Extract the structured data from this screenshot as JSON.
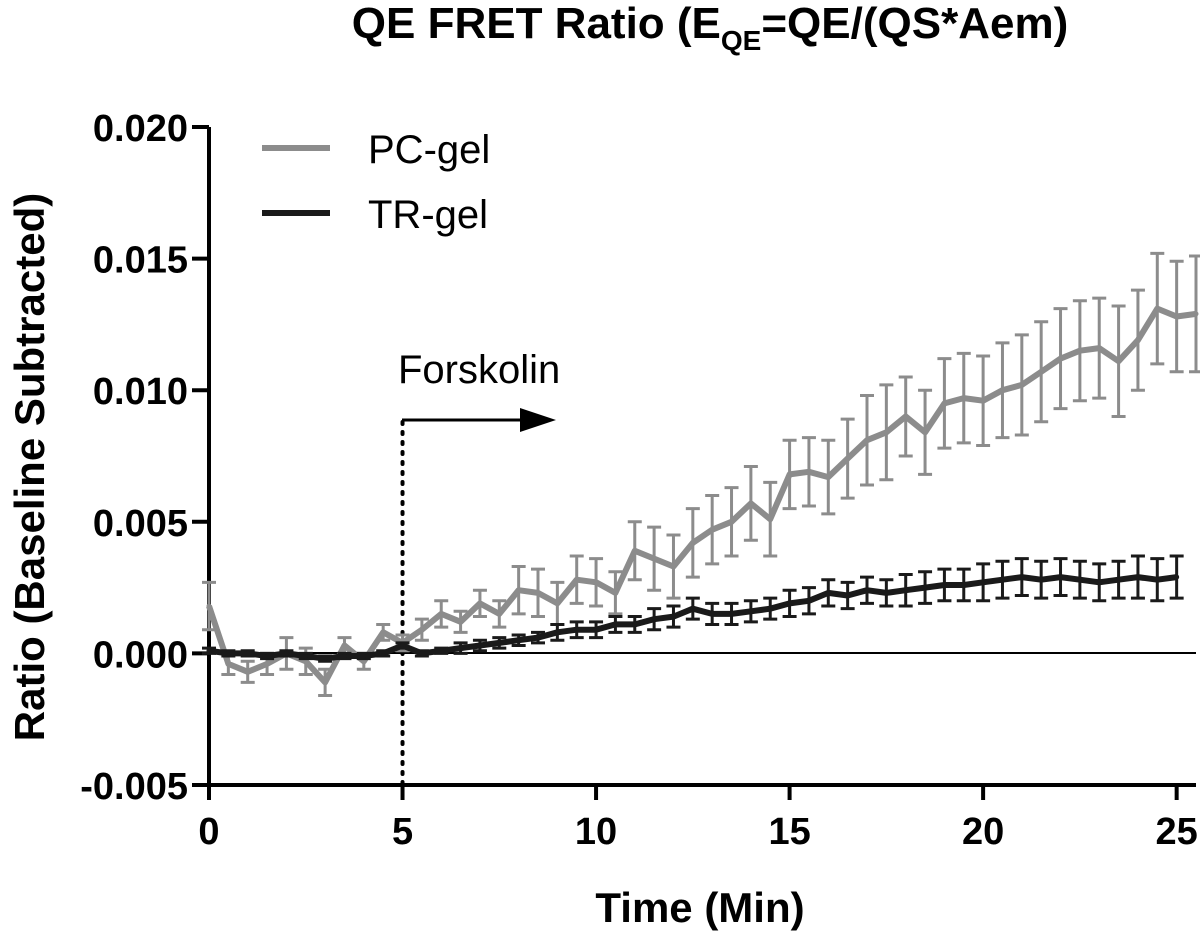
{
  "chart_data": {
    "type": "line",
    "title": {
      "main": "QE FRET Ratio (E",
      "subscript": "QE",
      "rest": "=QE/(QS*Aem)"
    },
    "xlabel": "Time (Min)",
    "ylabel": "Ratio (Baseline  Subtracted)",
    "xlim": [
      0,
      25.5
    ],
    "ylim": [
      -0.005,
      0.02
    ],
    "xticks": [
      0,
      5,
      10,
      15,
      20,
      25
    ],
    "xtick_labels": [
      "0",
      "5",
      "10",
      "15",
      "20",
      "25"
    ],
    "yticks": [
      -0.005,
      0,
      0.005,
      0.01,
      0.015,
      0.02
    ],
    "ytick_labels": [
      "-0.005",
      "0.000",
      "0.005",
      "0.010",
      "0.015",
      "0.020"
    ],
    "legend_position": "top-left",
    "colors": {
      "PC-gel": "#8c8c8c",
      "TR-gel": "#1a1a1a",
      "axis": "#000000"
    },
    "annotations": {
      "event_label": "Forskolin",
      "event_x": 5
    },
    "series": [
      {
        "name": "PC-gel",
        "x": [
          0,
          0.5,
          1,
          1.5,
          2,
          2.5,
          3,
          3.5,
          4,
          4.5,
          5,
          5.5,
          6,
          6.5,
          7,
          7.5,
          8,
          8.5,
          9,
          9.5,
          10,
          10.5,
          11,
          11.5,
          12,
          12.5,
          13,
          13.5,
          14,
          14.5,
          15,
          15.5,
          16,
          16.5,
          17,
          17.5,
          18,
          18.5,
          19,
          19.5,
          20,
          20.5,
          21,
          21.5,
          22,
          22.5,
          23,
          23.5,
          24,
          24.5,
          25,
          25.5
        ],
        "values": [
          0.0018,
          -0.0004,
          -0.0007,
          -0.0004,
          0.0,
          -0.0003,
          -0.0011,
          0.0003,
          -0.0003,
          0.0008,
          0.0004,
          0.0009,
          0.0015,
          0.0012,
          0.0019,
          0.0015,
          0.0024,
          0.0023,
          0.0019,
          0.0028,
          0.0027,
          0.0023,
          0.0039,
          0.0036,
          0.0033,
          0.0042,
          0.0047,
          0.005,
          0.0057,
          0.0051,
          0.0068,
          0.0069,
          0.0067,
          0.0074,
          0.0081,
          0.0084,
          0.009,
          0.0084,
          0.0095,
          0.0097,
          0.0096,
          0.01,
          0.0102,
          0.0107,
          0.0112,
          0.0115,
          0.0116,
          0.0111,
          0.0119,
          0.0131,
          0.0128,
          0.0129
        ],
        "errors": [
          0.0009,
          0.0004,
          0.0004,
          0.0004,
          0.0006,
          0.0005,
          0.0005,
          0.0003,
          0.0003,
          0.0003,
          0.0003,
          0.0004,
          0.0005,
          0.0004,
          0.0005,
          0.0005,
          0.0009,
          0.0009,
          0.0008,
          0.0009,
          0.0009,
          0.0008,
          0.0011,
          0.0012,
          0.0012,
          0.0013,
          0.0013,
          0.0013,
          0.0014,
          0.0014,
          0.0013,
          0.0013,
          0.0014,
          0.0015,
          0.0017,
          0.0018,
          0.0015,
          0.0016,
          0.0017,
          0.0017,
          0.0017,
          0.0018,
          0.0019,
          0.0019,
          0.0019,
          0.0019,
          0.0019,
          0.0021,
          0.0019,
          0.0021,
          0.0021,
          0.0022
        ]
      },
      {
        "name": "TR-gel",
        "x": [
          0,
          0.5,
          1,
          1.5,
          2,
          2.5,
          3,
          3.5,
          4,
          4.5,
          5,
          5.5,
          6,
          6.5,
          7,
          7.5,
          8,
          8.5,
          9,
          9.5,
          10,
          10.5,
          11,
          11.5,
          12,
          12.5,
          13,
          13.5,
          14,
          14.5,
          15,
          15.5,
          16,
          16.5,
          17,
          17.5,
          18,
          18.5,
          19,
          19.5,
          20,
          20.5,
          21,
          21.5,
          22,
          22.5,
          23,
          23.5,
          24,
          24.5,
          25
        ],
        "values": [
          0.0001,
          0.0,
          0.0,
          -0.0001,
          0.0,
          -0.0001,
          -0.0002,
          -0.0001,
          -0.0001,
          0.0,
          0.0003,
          0.0,
          0.0001,
          0.0002,
          0.0003,
          0.0004,
          0.0005,
          0.0006,
          0.0008,
          0.0009,
          0.0009,
          0.0011,
          0.0011,
          0.0013,
          0.0014,
          0.0017,
          0.0015,
          0.0015,
          0.0016,
          0.0017,
          0.0019,
          0.002,
          0.0023,
          0.0022,
          0.0024,
          0.0023,
          0.0024,
          0.0025,
          0.0026,
          0.0026,
          0.0027,
          0.0028,
          0.0029,
          0.0028,
          0.0029,
          0.0028,
          0.0027,
          0.0028,
          0.0029,
          0.0028,
          0.0029
        ],
        "errors": [
          0.0001,
          0.0001,
          0.0001,
          0.0001,
          0.0001,
          0.0001,
          0.0001,
          0.0001,
          0.0001,
          0.0001,
          0.0001,
          0.0001,
          0.0001,
          0.0002,
          0.0002,
          0.0002,
          0.0002,
          0.0002,
          0.0003,
          0.0003,
          0.0003,
          0.0003,
          0.0003,
          0.0004,
          0.0004,
          0.0004,
          0.0004,
          0.0004,
          0.0004,
          0.0004,
          0.0005,
          0.0005,
          0.0005,
          0.0005,
          0.0005,
          0.0005,
          0.0006,
          0.0006,
          0.0006,
          0.0006,
          0.0007,
          0.0007,
          0.0007,
          0.0007,
          0.0007,
          0.0007,
          0.0007,
          0.0007,
          0.0008,
          0.0008,
          0.0008
        ]
      }
    ]
  }
}
